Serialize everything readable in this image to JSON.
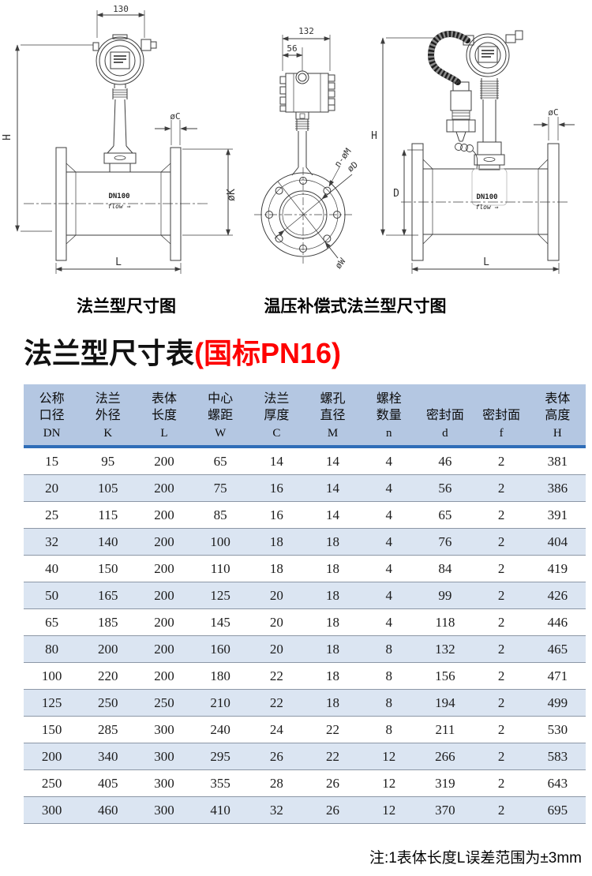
{
  "colors": {
    "accent_red": "#fe0000",
    "table_header_bg": "#b4c7e2",
    "table_stripe_bg": "#dbe5f2",
    "header_rule_blue": "#2f6db8",
    "row_border_gray": "#8c97a6"
  },
  "diagrams": {
    "left": {
      "caption": "法兰型尺寸图",
      "dim_width_top": "130",
      "dim_height": "H",
      "dim_flange_thickness": "øC",
      "dim_flange_diameter": "øK",
      "dim_length": "L",
      "body_label": "DN100",
      "flow_label": "flow ⇒"
    },
    "middle": {
      "dim_width_top": "132",
      "dim_offset": "56",
      "dim_bolt_holes": "n-øM",
      "dim_bore": "øD",
      "dim_bolt_circle": "øW"
    },
    "right": {
      "caption": "温压补偿式法兰型尺寸图",
      "dim_height": "H",
      "dim_body_height": "D",
      "dim_flange_thickness": "øC",
      "dim_length": "L",
      "body_label": "DN100",
      "flow_label": "flow ⇒"
    }
  },
  "title": {
    "main": "法兰型尺寸表",
    "paren": "(国标PN16)"
  },
  "table": {
    "columns": [
      {
        "lines": [
          "公称",
          "口径"
        ],
        "code": "DN"
      },
      {
        "lines": [
          "法兰",
          "外径"
        ],
        "code": "K"
      },
      {
        "lines": [
          "表体",
          "长度"
        ],
        "code": "L"
      },
      {
        "lines": [
          "中心",
          "螺距"
        ],
        "code": "W"
      },
      {
        "lines": [
          "法兰",
          "厚度"
        ],
        "code": "C"
      },
      {
        "lines": [
          "螺孔",
          "直径"
        ],
        "code": "M"
      },
      {
        "lines": [
          "螺栓",
          "数量"
        ],
        "code": "n"
      },
      {
        "lines": [
          "密封面"
        ],
        "code": "d"
      },
      {
        "lines": [
          "密封面"
        ],
        "code": "f"
      },
      {
        "lines": [
          "表体",
          "高度"
        ],
        "code": "H"
      }
    ],
    "rows": [
      [
        "15",
        "95",
        "200",
        "65",
        "14",
        "14",
        "4",
        "46",
        "2",
        "381"
      ],
      [
        "20",
        "105",
        "200",
        "75",
        "16",
        "14",
        "4",
        "56",
        "2",
        "386"
      ],
      [
        "25",
        "115",
        "200",
        "85",
        "16",
        "14",
        "4",
        "65",
        "2",
        "391"
      ],
      [
        "32",
        "140",
        "200",
        "100",
        "18",
        "18",
        "4",
        "76",
        "2",
        "404"
      ],
      [
        "40",
        "150",
        "200",
        "110",
        "18",
        "18",
        "4",
        "84",
        "2",
        "419"
      ],
      [
        "50",
        "165",
        "200",
        "125",
        "20",
        "18",
        "4",
        "99",
        "2",
        "426"
      ],
      [
        "65",
        "185",
        "200",
        "145",
        "20",
        "18",
        "4",
        "118",
        "2",
        "446"
      ],
      [
        "80",
        "200",
        "200",
        "160",
        "20",
        "18",
        "8",
        "132",
        "2",
        "465"
      ],
      [
        "100",
        "220",
        "200",
        "180",
        "22",
        "18",
        "8",
        "156",
        "2",
        "471"
      ],
      [
        "125",
        "250",
        "250",
        "210",
        "22",
        "18",
        "8",
        "194",
        "2",
        "499"
      ],
      [
        "150",
        "285",
        "300",
        "240",
        "24",
        "22",
        "8",
        "211",
        "2",
        "530"
      ],
      [
        "200",
        "340",
        "300",
        "295",
        "26",
        "22",
        "12",
        "266",
        "2",
        "583"
      ],
      [
        "250",
        "405",
        "300",
        "355",
        "28",
        "26",
        "12",
        "319",
        "2",
        "643"
      ],
      [
        "300",
        "460",
        "300",
        "410",
        "32",
        "26",
        "12",
        "370",
        "2",
        "695"
      ]
    ]
  },
  "note": "注:1表体长度L误差范围为±3mm"
}
